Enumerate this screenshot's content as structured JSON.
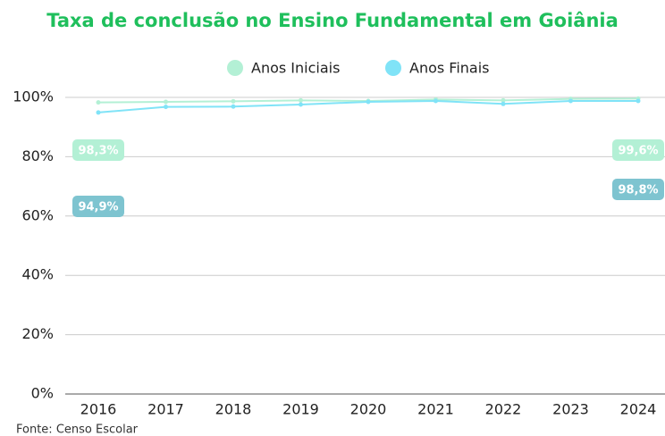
{
  "chart_data": {
    "type": "line",
    "title": "Taxa de conclusão no Ensino Fundamental em Goiânia",
    "source": "Fonte: Censo Escolar",
    "categories": [
      "2016",
      "2017",
      "2018",
      "2019",
      "2020",
      "2021",
      "2022",
      "2023",
      "2024"
    ],
    "series": [
      {
        "name": "Anos Iniciais",
        "color": "#b3f0d5",
        "label_color": "#b3f0d5",
        "values": [
          98.3,
          98.5,
          98.7,
          99.0,
          98.8,
          99.3,
          99.0,
          99.5,
          99.6
        ],
        "value_labels": [
          "98,3%",
          null,
          null,
          null,
          null,
          null,
          null,
          null,
          "99,6%"
        ]
      },
      {
        "name": "Anos Finais",
        "color": "#80e3f7",
        "label_color": "#7ec4d0",
        "values": [
          94.9,
          96.8,
          96.9,
          97.6,
          98.5,
          98.8,
          97.8,
          98.8,
          98.8
        ],
        "value_labels": [
          "94,9%",
          null,
          null,
          null,
          null,
          null,
          null,
          null,
          "98,8%"
        ]
      }
    ],
    "ylim": [
      0,
      100
    ],
    "yticks": [
      {
        "value": 0,
        "label": "0%"
      },
      {
        "value": 20,
        "label": "20%"
      },
      {
        "value": 40,
        "label": "40%"
      },
      {
        "value": 60,
        "label": "60%"
      },
      {
        "value": 80,
        "label": "80%"
      },
      {
        "value": 100,
        "label": "100%"
      }
    ],
    "grid": true,
    "legend": "top"
  }
}
